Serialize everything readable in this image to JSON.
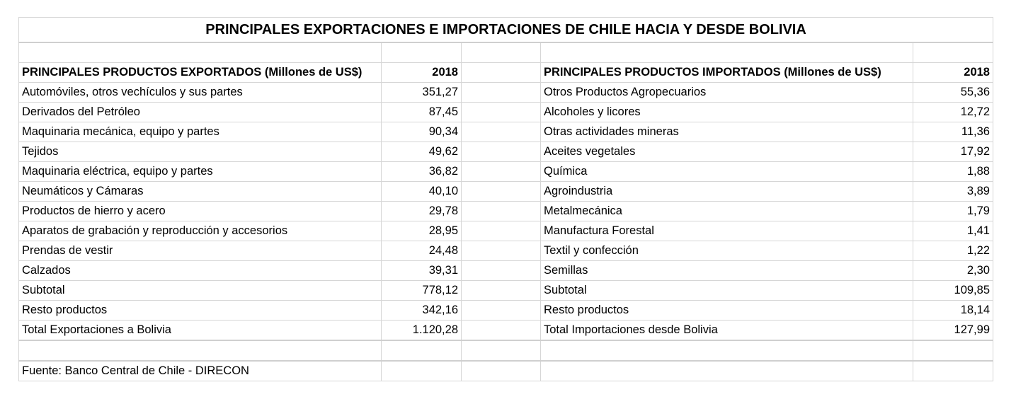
{
  "title": "PRINCIPALES EXPORTACIONES E IMPORTACIONES DE CHILE HACIA Y DESDE BOLIVIA",
  "exports": {
    "header": "PRINCIPALES PRODUCTOS EXPORTADOS (Millones de US$)",
    "year": "2018",
    "rows": [
      {
        "label": "Automóviles, otros vechículos y sus partes",
        "value": "351,27"
      },
      {
        "label": "Derivados del Petróleo",
        "value": "87,45"
      },
      {
        "label": "Maquinaria mecánica, equipo y partes",
        "value": "90,34"
      },
      {
        "label": "Tejidos",
        "value": "49,62"
      },
      {
        "label": "Maquinaria eléctrica, equipo y partes",
        "value": "36,82"
      },
      {
        "label": "Neumáticos y Cámaras",
        "value": "40,10"
      },
      {
        "label": "Productos de hierro y acero",
        "value": "29,78"
      },
      {
        "label": "Aparatos de grabación y reproducción y accesorios",
        "value": "28,95"
      },
      {
        "label": "Prendas de vestir",
        "value": "24,48"
      },
      {
        "label": "Calzados",
        "value": "39,31"
      },
      {
        "label": "Subtotal",
        "value": "778,12"
      },
      {
        "label": "Resto productos",
        "value": "342,16"
      },
      {
        "label": "Total Exportaciones a Bolivia",
        "value": "1.120,28"
      }
    ]
  },
  "imports": {
    "header": "PRINCIPALES PRODUCTOS IMPORTADOS (Millones de US$)",
    "year": "2018",
    "rows": [
      {
        "label": "Otros Productos Agropecuarios",
        "value": "55,36"
      },
      {
        "label": "Alcoholes y licores",
        "value": "12,72"
      },
      {
        "label": "Otras actividades mineras",
        "value": "11,36"
      },
      {
        "label": "Aceites vegetales",
        "value": "17,92"
      },
      {
        "label": "Química",
        "value": "1,88"
      },
      {
        "label": "Agroindustria",
        "value": "3,89"
      },
      {
        "label": "Metalmecánica",
        "value": "1,79"
      },
      {
        "label": "Manufactura Forestal",
        "value": "1,41"
      },
      {
        "label": "Textil y confección",
        "value": "1,22"
      },
      {
        "label": "Semillas",
        "value": "2,30"
      },
      {
        "label": "Subtotal",
        "value": "109,85"
      },
      {
        "label": "Resto productos",
        "value": "18,14"
      },
      {
        "label": "Total Importaciones desde Bolivia",
        "value": "127,99"
      }
    ]
  },
  "source": "Fuente: Banco Central de Chile - DIRECON"
}
